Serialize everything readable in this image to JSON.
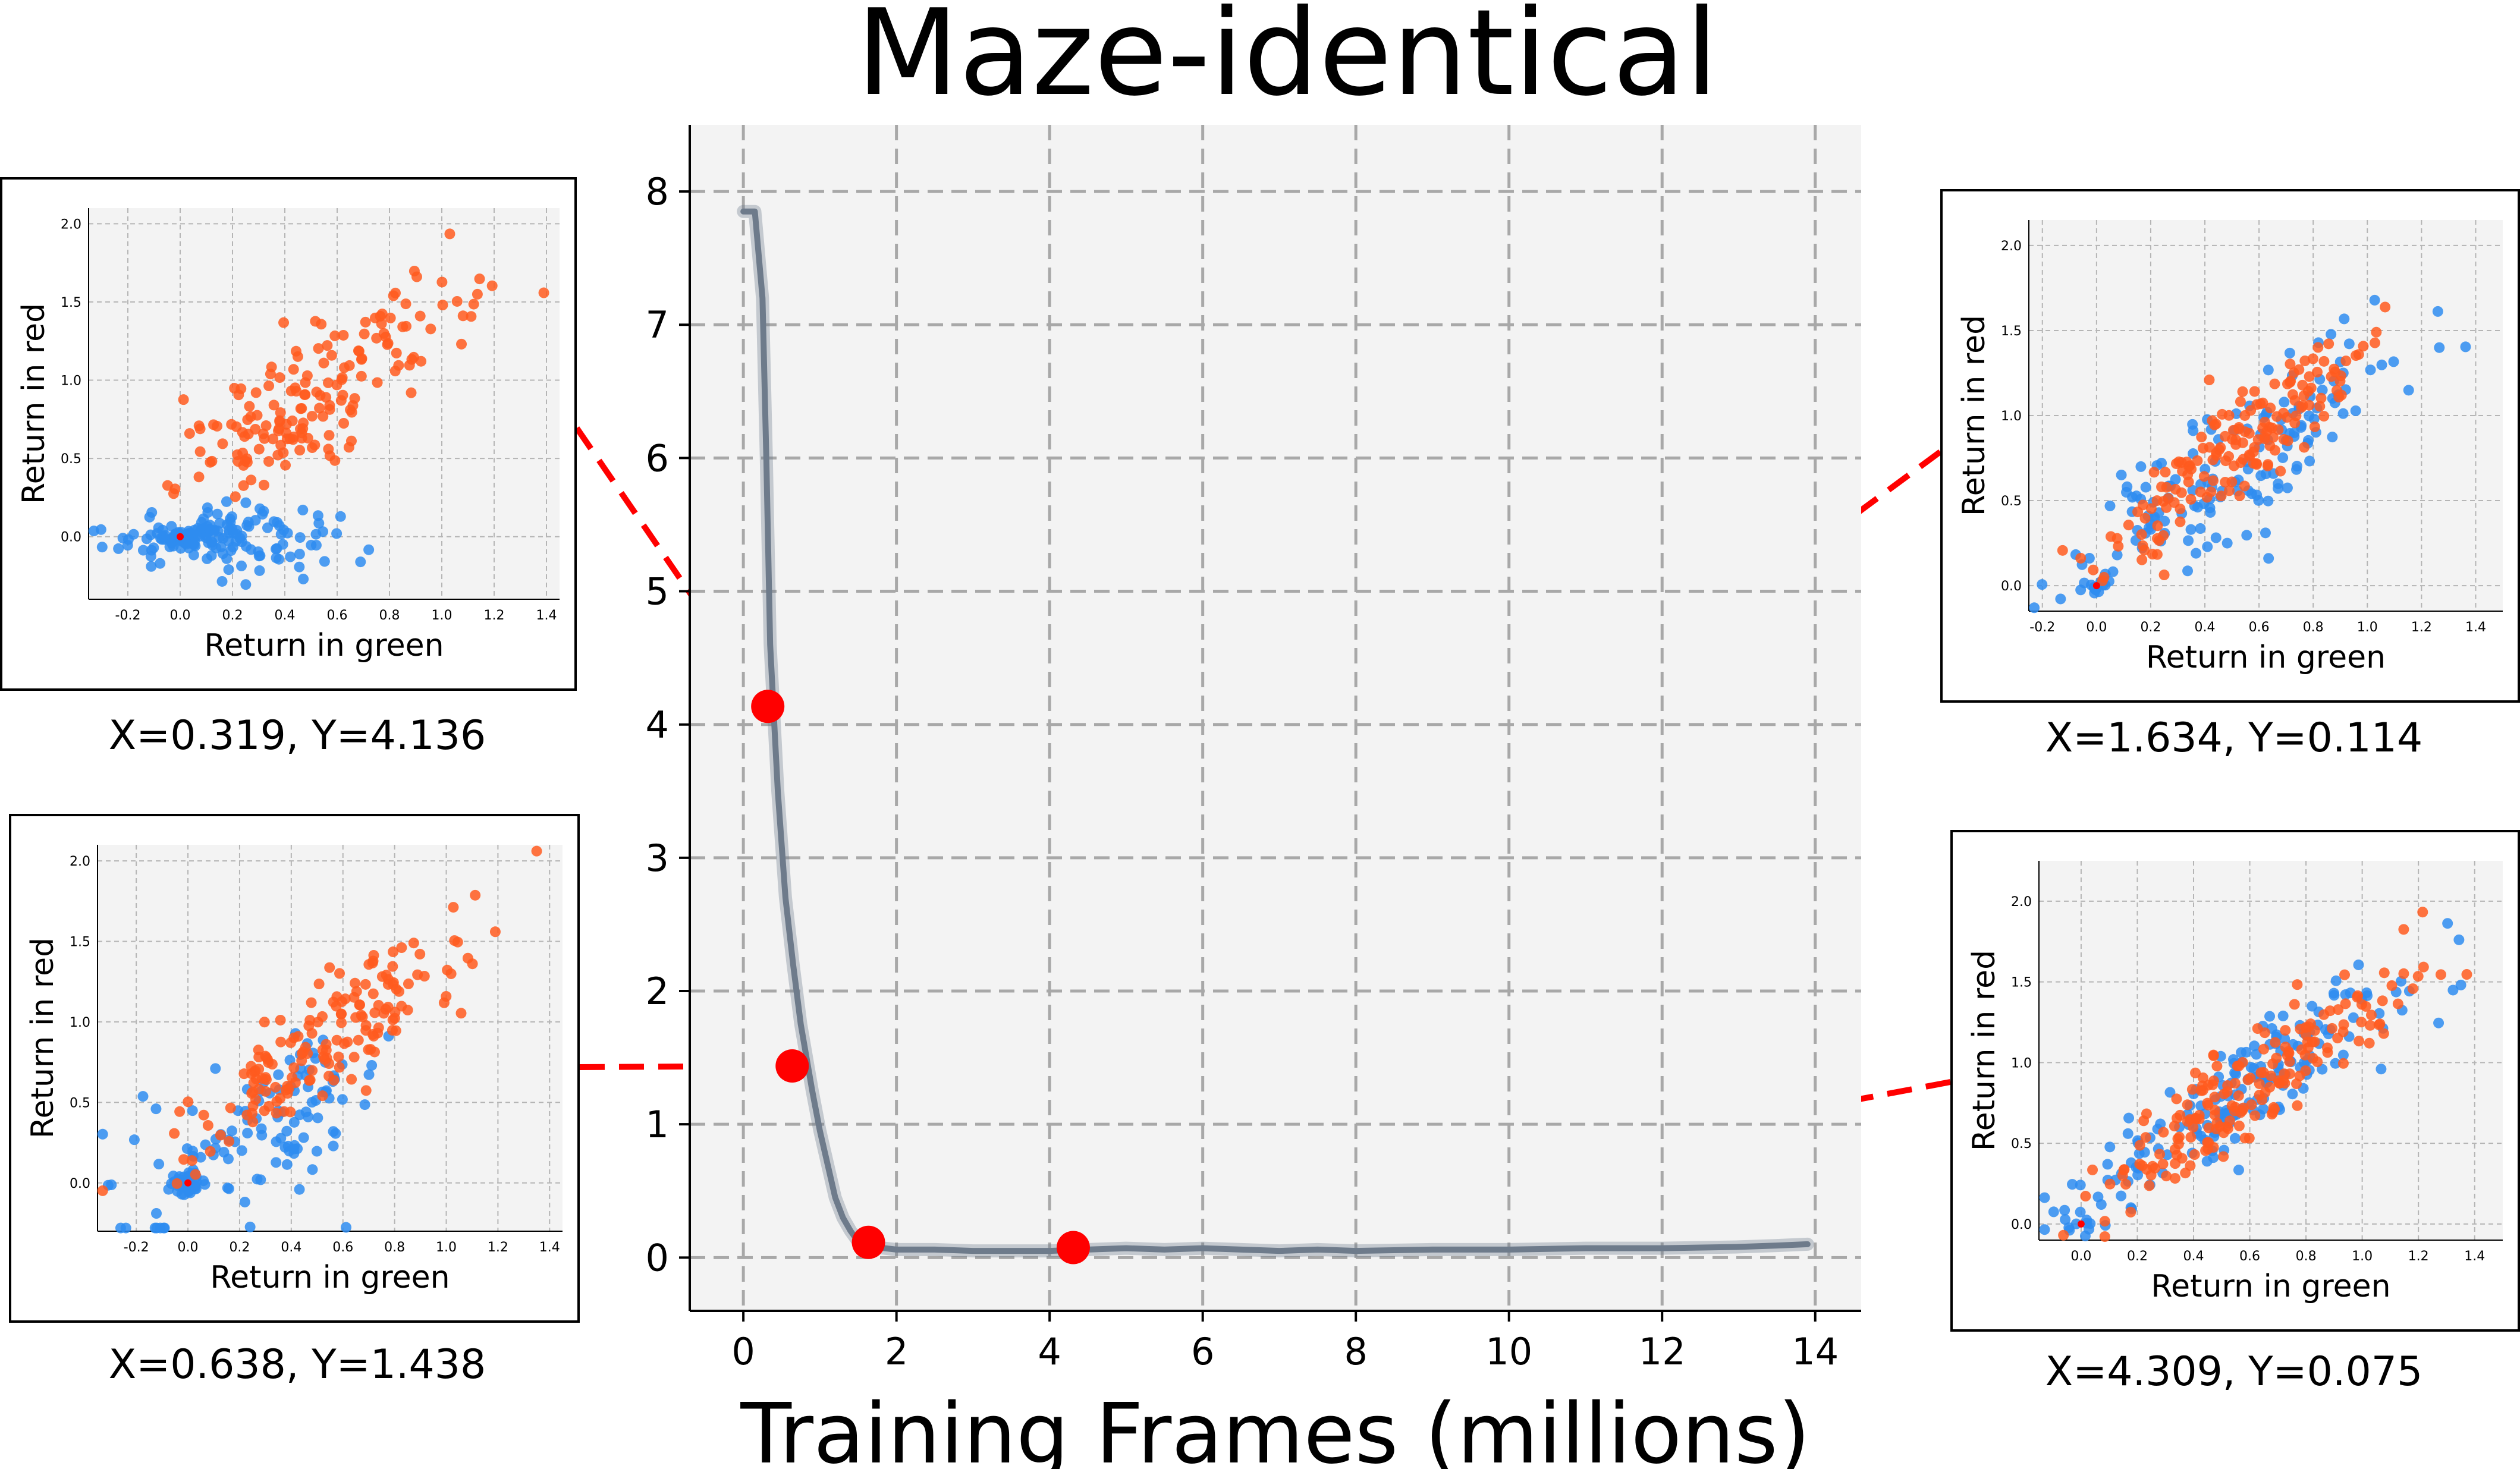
{
  "title": "Maze-identical",
  "colors": {
    "line": "#6e7b8b",
    "marker": "#ff0000",
    "blue": "#2e8cf0",
    "orange": "#ff5a1e",
    "panel": "#f3f3f3"
  },
  "chart_data": {
    "type": "line",
    "title": "Maze-identical",
    "xlabel": "Training Frames (millions)",
    "ylabel": "",
    "xlim": [
      -0.7,
      14.6
    ],
    "ylim": [
      -0.4,
      8.5
    ],
    "xticks": [
      0,
      2,
      4,
      6,
      8,
      10,
      12,
      14
    ],
    "yticks": [
      0,
      1,
      2,
      3,
      4,
      5,
      6,
      7,
      8
    ],
    "grid": true,
    "series": [
      {
        "x": [
          0,
          0.15,
          0.25,
          0.3,
          0.35,
          0.45,
          0.55,
          0.65,
          0.75,
          0.9,
          1.0,
          1.1,
          1.2,
          1.3,
          1.4,
          1.5,
          1.7,
          2.0,
          2.5,
          3.0,
          3.5,
          4.0,
          4.5,
          5.0,
          5.5,
          6.0,
          6.5,
          7.0,
          7.5,
          8.0,
          9.0,
          10.0,
          11.0,
          12.0,
          13.0,
          13.5,
          13.9
        ],
        "y": [
          7.85,
          7.85,
          7.2,
          6.0,
          4.6,
          3.5,
          2.7,
          2.2,
          1.75,
          1.25,
          0.95,
          0.7,
          0.45,
          0.3,
          0.2,
          0.12,
          0.08,
          0.06,
          0.06,
          0.05,
          0.05,
          0.05,
          0.06,
          0.07,
          0.06,
          0.07,
          0.06,
          0.05,
          0.06,
          0.05,
          0.06,
          0.06,
          0.07,
          0.07,
          0.08,
          0.09,
          0.1
        ]
      }
    ],
    "markers": [
      {
        "x": 0.319,
        "y": 4.136,
        "label": "X=0.319, Y=4.136"
      },
      {
        "x": 0.638,
        "y": 1.438,
        "label": "X=0.638, Y=1.438"
      },
      {
        "x": 1.634,
        "y": 0.114,
        "label": "X=1.634, Y=0.114"
      },
      {
        "x": 4.309,
        "y": 0.075,
        "label": "X=4.309, Y=0.075"
      }
    ],
    "insets": [
      {
        "type": "scatter",
        "marker_index": 0,
        "xlabel": "Return in green",
        "ylabel": "Return in red",
        "xlim": [
          -0.35,
          1.45
        ],
        "ylim": [
          -0.4,
          2.1
        ],
        "xticks": [
          "-0.2",
          "0.0",
          "0.2",
          "0.4",
          "0.6",
          "0.8",
          "1.0",
          "1.2",
          "1.4"
        ],
        "yticks": [
          "0.0",
          "0.5",
          "1.0",
          "1.5",
          "2.0"
        ],
        "blue": {
          "center": [
            0.15,
            0.0
          ],
          "spread": [
            0.22,
            0.1
          ],
          "corr": 0.0,
          "n": 130,
          "cluster_n": 30
        },
        "orange": {
          "center": [
            0.55,
            0.95
          ],
          "spread": [
            0.28,
            0.38
          ],
          "corr": 0.85,
          "n": 170,
          "cluster_n": 0
        }
      },
      {
        "type": "scatter",
        "marker_index": 1,
        "xlabel": "Return in green",
        "ylabel": "Return in red",
        "xlim": [
          -0.35,
          1.45
        ],
        "ylim": [
          -0.3,
          2.1
        ],
        "xticks": [
          "-0.2",
          "0.0",
          "0.2",
          "0.4",
          "0.6",
          "0.8",
          "1.0",
          "1.2",
          "1.4"
        ],
        "yticks": [
          "0.0",
          "0.5",
          "1.0",
          "1.5",
          "2.0"
        ],
        "blue": {
          "center": [
            0.3,
            0.35
          ],
          "spread": [
            0.25,
            0.3
          ],
          "corr": 0.6,
          "n": 110,
          "cluster_n": 40
        },
        "orange": {
          "center": [
            0.5,
            0.85
          ],
          "spread": [
            0.28,
            0.35
          ],
          "corr": 0.85,
          "n": 170,
          "cluster_n": 0
        }
      },
      {
        "type": "scatter",
        "marker_index": 2,
        "xlabel": "Return in green",
        "ylabel": "Return in red",
        "xlim": [
          -0.25,
          1.5
        ],
        "ylim": [
          -0.15,
          2.15
        ],
        "xticks": [
          "-0.2",
          "0.0",
          "0.2",
          "0.4",
          "0.6",
          "0.8",
          "1.0",
          "1.2",
          "1.4"
        ],
        "yticks": [
          "0.0",
          "0.5",
          "1.0",
          "1.5",
          "2.0"
        ],
        "blue": {
          "center": [
            0.55,
            0.75
          ],
          "spread": [
            0.32,
            0.4
          ],
          "corr": 0.85,
          "n": 150,
          "cluster_n": 15
        },
        "orange": {
          "center": [
            0.55,
            0.85
          ],
          "spread": [
            0.25,
            0.35
          ],
          "corr": 0.9,
          "n": 170,
          "cluster_n": 0
        }
      },
      {
        "type": "scatter",
        "marker_index": 3,
        "xlabel": "Return in green",
        "ylabel": "Return in red",
        "xlim": [
          -0.15,
          1.5
        ],
        "ylim": [
          -0.1,
          2.25
        ],
        "xticks": [
          "0.0",
          "0.2",
          "0.4",
          "0.6",
          "0.8",
          "1.0",
          "1.2",
          "1.4"
        ],
        "yticks": [
          "0.0",
          "0.5",
          "1.0",
          "1.5",
          "2.0"
        ],
        "blue": {
          "center": [
            0.6,
            0.85
          ],
          "spread": [
            0.32,
            0.42
          ],
          "corr": 0.9,
          "n": 170,
          "cluster_n": 10
        },
        "orange": {
          "center": [
            0.6,
            0.85
          ],
          "spread": [
            0.3,
            0.38
          ],
          "corr": 0.9,
          "n": 190,
          "cluster_n": 0
        }
      }
    ]
  }
}
